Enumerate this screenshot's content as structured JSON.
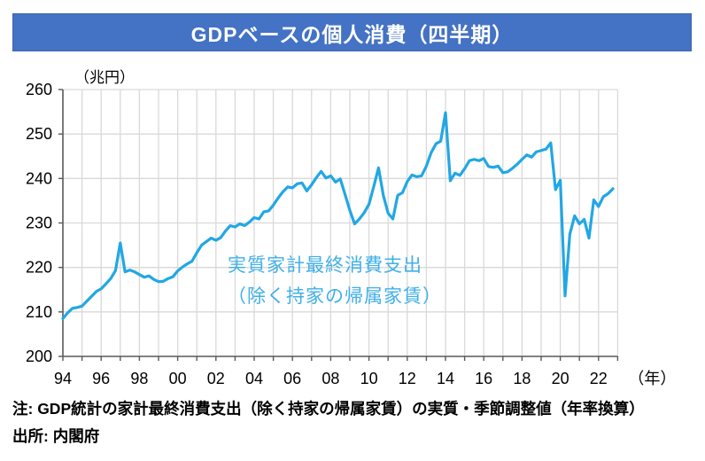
{
  "title": "GDPベースの個人消費（四半期）",
  "colors": {
    "banner_bg": "#4472C4",
    "banner_text": "#FFFFFF",
    "line": "#22A7E4",
    "annotation_text": "#3FB0E8",
    "gridline": "#D9D9D9",
    "axis": "#595959",
    "tick_label": "#000000"
  },
  "y_axis_unit": "（兆円）",
  "x_axis_unit": "（年）",
  "annotation": {
    "line1": "実質家計最終消費支出",
    "line2": "（除く持家の帰属家賃）"
  },
  "notes": {
    "note": "注: GDP統計の家計最終消費支出（除く持家の帰属家賃）の実質・季節調整値（年率換算）",
    "source": "出所: 内閣府"
  },
  "chart_data": {
    "type": "line",
    "title": "GDPベースの個人消費（四半期）",
    "ylabel": "兆円",
    "xlabel": "年",
    "ylim": [
      200,
      260
    ],
    "y_ticks": [
      200,
      210,
      220,
      230,
      240,
      250,
      260
    ],
    "x_start_year": 1994,
    "x_end_year": 2023,
    "x_tick_labels": [
      "94",
      "96",
      "98",
      "00",
      "02",
      "04",
      "06",
      "08",
      "10",
      "12",
      "14",
      "16",
      "18",
      "20",
      "22"
    ],
    "x_tick_years": [
      1994,
      1996,
      1998,
      2000,
      2002,
      2004,
      2006,
      2008,
      2010,
      2012,
      2014,
      2016,
      2018,
      2020,
      2022
    ],
    "grid": "both",
    "series": [
      {
        "name": "実質家計最終消費支出（除く持家の帰属家賃）",
        "frequency": "quarterly",
        "start": "1994Q1",
        "end": "2022Q4",
        "values": [
          208.5,
          209.8,
          210.8,
          211.0,
          211.3,
          212.4,
          213.5,
          214.6,
          215.2,
          216.3,
          217.5,
          219.3,
          225.5,
          219.0,
          219.4,
          219.0,
          218.4,
          217.8,
          218.1,
          217.3,
          216.8,
          216.9,
          217.5,
          217.9,
          219.2,
          220.1,
          220.8,
          221.4,
          223.3,
          225.0,
          225.8,
          226.6,
          226.1,
          226.7,
          228.2,
          229.4,
          229.1,
          229.8,
          229.4,
          230.2,
          231.2,
          230.9,
          232.5,
          232.7,
          234.0,
          235.6,
          237.0,
          238.1,
          237.9,
          238.8,
          239.0,
          237.2,
          238.6,
          240.2,
          241.6,
          240.1,
          240.6,
          239.2,
          239.9,
          236.4,
          232.8,
          229.8,
          230.9,
          232.3,
          234.2,
          238.2,
          242.4,
          236.2,
          232.2,
          230.9,
          236.2,
          236.8,
          239.3,
          240.8,
          240.4,
          240.6,
          242.8,
          245.8,
          247.8,
          248.4,
          254.8,
          239.5,
          241.2,
          240.7,
          242.2,
          244.0,
          244.3,
          244.0,
          244.5,
          242.7,
          242.5,
          242.8,
          241.3,
          241.5,
          242.3,
          243.2,
          244.3,
          245.3,
          244.8,
          246.0,
          246.3,
          246.6,
          248.0,
          237.5,
          239.6,
          213.6,
          227.5,
          231.6,
          229.8,
          230.8,
          226.6,
          235.2,
          233.7,
          235.9,
          236.6,
          237.7
        ]
      }
    ]
  }
}
